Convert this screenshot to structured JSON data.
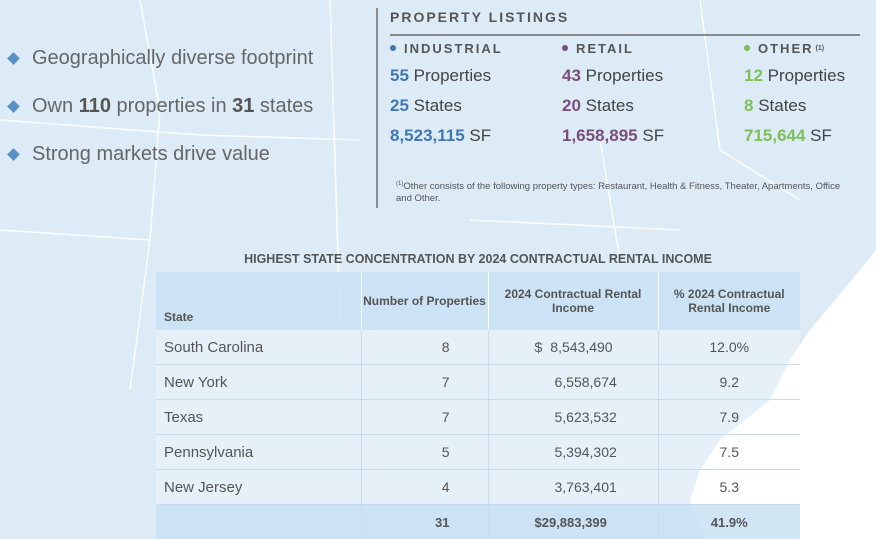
{
  "bullets": [
    {
      "pre": "Geographically diverse footprint",
      "b1": "",
      "mid": "",
      "b2": "",
      "post": ""
    },
    {
      "pre": "Own ",
      "b1": "110",
      "mid": " properties in ",
      "b2": "31",
      "post": " states"
    },
    {
      "pre": "Strong markets drive value",
      "b1": "",
      "mid": "",
      "b2": "",
      "post": ""
    }
  ],
  "listings": {
    "title": "PROPERTY LISTINGS",
    "columns": [
      {
        "name": "INDUSTRIAL",
        "sup": "",
        "color": "#3f78b5",
        "props_num": "55",
        "props_label": " Properties",
        "states_num": "25",
        "states_label": " States",
        "sf_num": "8,523,115",
        "sf_label": " SF"
      },
      {
        "name": "RETAIL",
        "sup": "",
        "color": "#7a4d7d",
        "props_num": "43",
        "props_label": " Properties",
        "states_num": "20",
        "states_label": " States",
        "sf_num": "1,658,895",
        "sf_label": " SF"
      },
      {
        "name": "OTHER",
        "sup": "(1)",
        "color": "#7fbf57",
        "props_num": "12",
        "props_label": " Properties",
        "states_num": "8",
        "states_label": " States",
        "sf_num": "715,644",
        "sf_label": " SF"
      }
    ],
    "footnote_mark": "(1)",
    "footnote": "Other consists of the following property types: Restaurant, Health & Fitness, Theater, Apartments, Office and Other."
  },
  "table": {
    "title": "HIGHEST STATE CONCENTRATION BY 2024 CONTRACTUAL RENTAL INCOME",
    "headers": [
      "State",
      "Number of Properties",
      "2024 Contractual Rental Income",
      "% 2024 Contractual Rental Income"
    ],
    "rows": [
      {
        "state": "South Carolina",
        "count": "8",
        "currency": "$",
        "income": "8,543,490",
        "pct": "12.0%"
      },
      {
        "state": "New York",
        "count": "7",
        "currency": "",
        "income": "6,558,674",
        "pct": "9.2"
      },
      {
        "state": "Texas",
        "count": "7",
        "currency": "",
        "income": "5,623,532",
        "pct": "7.9"
      },
      {
        "state": "Pennsylvania",
        "count": "5",
        "currency": "",
        "income": "5,394,302",
        "pct": "7.5"
      },
      {
        "state": "New Jersey",
        "count": "4",
        "currency": "",
        "income": "3,763,401",
        "pct": "5.3"
      }
    ],
    "total": {
      "state": "",
      "count": "31",
      "income": "$29,883,399",
      "pct": "41.9%"
    }
  }
}
